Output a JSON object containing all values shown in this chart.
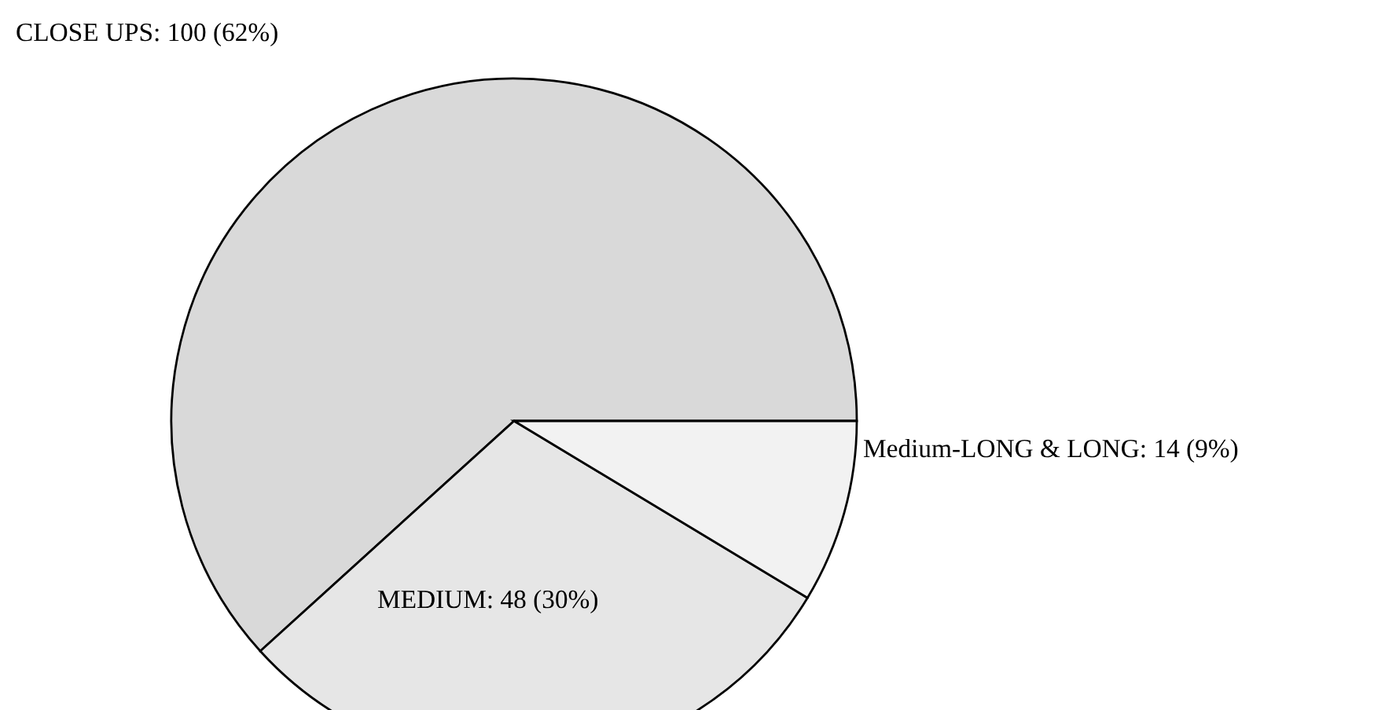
{
  "chart_data": {
    "type": "pie",
    "categories": [
      "CLOSE UPS",
      "MEDIUM",
      "Medium-LONG & LONG"
    ],
    "values": [
      100,
      48,
      14
    ],
    "value_labels": [
      "100 (62%)",
      "48 (30%)",
      "14 (9%)"
    ],
    "colors": [
      "#d9d9d9",
      "#e6e6e6",
      "#f2f2f2"
    ]
  }
}
